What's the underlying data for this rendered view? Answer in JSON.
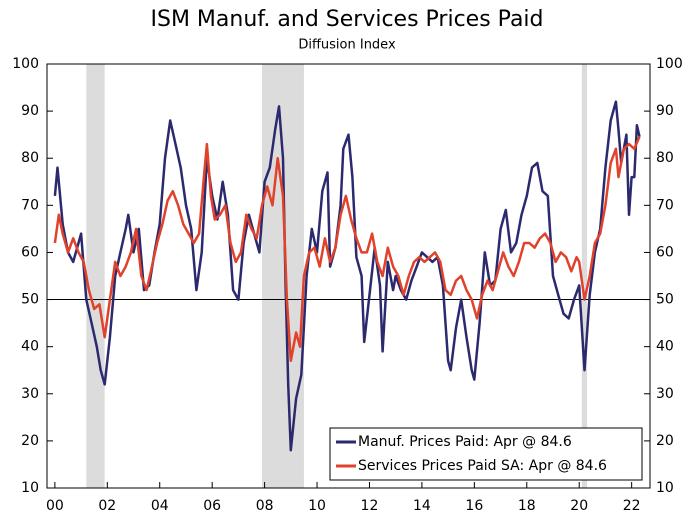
{
  "chart_data": {
    "type": "line",
    "title": "ISM Manuf. and Services Prices Paid",
    "subtitle": "Diffusion Index",
    "xlim": [
      1999.7,
      2022.7
    ],
    "xticks": [
      {
        "value": 2000,
        "label": "00"
      },
      {
        "value": 2002,
        "label": "02"
      },
      {
        "value": 2004,
        "label": "04"
      },
      {
        "value": 2006,
        "label": "06"
      },
      {
        "value": 2008,
        "label": "08"
      },
      {
        "value": 2010,
        "label": "10"
      },
      {
        "value": 2012,
        "label": "12"
      },
      {
        "value": 2014,
        "label": "14"
      },
      {
        "value": 2016,
        "label": "16"
      },
      {
        "value": 2018,
        "label": "18"
      },
      {
        "value": 2020,
        "label": "20"
      },
      {
        "value": 2022,
        "label": "22"
      }
    ],
    "ylim": [
      10,
      100
    ],
    "yticks": [
      10,
      20,
      30,
      40,
      50,
      60,
      70,
      80,
      90,
      100
    ],
    "y2lim": [
      10,
      100
    ],
    "y2ticks": [
      10,
      20,
      30,
      40,
      50,
      60,
      70,
      80,
      90,
      100
    ],
    "hline": 50,
    "shaded_regions": [
      [
        2001.2,
        2001.9
      ],
      [
        2007.9,
        2009.5
      ],
      [
        2020.1,
        2020.3
      ]
    ],
    "shade_color": "#dcdcdc",
    "legend": "lower right",
    "series": [
      {
        "name": "Manuf. Prices Paid: Apr @ 84.6",
        "color": "#2b2a6e",
        "x": [
          2000.0,
          2000.1,
          2000.3,
          2000.5,
          2000.7,
          2000.9,
          2001.0,
          2001.2,
          2001.4,
          2001.6,
          2001.75,
          2001.9,
          2002.1,
          2002.3,
          2002.5,
          2002.7,
          2002.8,
          2003.0,
          2003.2,
          2003.4,
          2003.6,
          2003.8,
          2004.0,
          2004.2,
          2004.4,
          2004.6,
          2004.8,
          2005.0,
          2005.2,
          2005.4,
          2005.6,
          2005.8,
          2006.0,
          2006.2,
          2006.4,
          2006.6,
          2006.8,
          2007.0,
          2007.2,
          2007.4,
          2007.6,
          2007.8,
          2008.0,
          2008.2,
          2008.4,
          2008.55,
          2008.7,
          2008.8,
          2008.9,
          2009.0,
          2009.2,
          2009.4,
          2009.6,
          2009.8,
          2010.0,
          2010.2,
          2010.4,
          2010.5,
          2010.7,
          2010.9,
          2011.0,
          2011.2,
          2011.35,
          2011.5,
          2011.7,
          2011.8,
          2012.0,
          2012.2,
          2012.4,
          2012.5,
          2012.7,
          2012.9,
          2013.0,
          2013.2,
          2013.4,
          2013.6,
          2013.8,
          2014.0,
          2014.2,
          2014.4,
          2014.6,
          2014.8,
          2015.0,
          2015.1,
          2015.3,
          2015.5,
          2015.7,
          2015.9,
          2016.0,
          2016.2,
          2016.4,
          2016.6,
          2016.8,
          2017.0,
          2017.2,
          2017.4,
          2017.6,
          2017.8,
          2018.0,
          2018.2,
          2018.4,
          2018.6,
          2018.8,
          2019.0,
          2019.2,
          2019.4,
          2019.6,
          2019.8,
          2020.0,
          2020.2,
          2020.4,
          2020.6,
          2020.8,
          2021.0,
          2021.2,
          2021.4,
          2021.5,
          2021.6,
          2021.8,
          2021.9,
          2022.0,
          2022.1,
          2022.2,
          2022.3
        ],
        "values": [
          72,
          78,
          66,
          60,
          58,
          62,
          64,
          50,
          45,
          40,
          35,
          32,
          42,
          55,
          60,
          65,
          68,
          60,
          65,
          52,
          53,
          60,
          66,
          80,
          88,
          83,
          78,
          70,
          65,
          52,
          60,
          80,
          72,
          67,
          75,
          68,
          52,
          50,
          62,
          68,
          64,
          60,
          75,
          78,
          86,
          91,
          80,
          53,
          32,
          18,
          29,
          34,
          55,
          65,
          60,
          73,
          77,
          57,
          61,
          70,
          82,
          85,
          76,
          59,
          55,
          41,
          51,
          61,
          53,
          39,
          58,
          52,
          55,
          52,
          50,
          54,
          57,
          60,
          59,
          58,
          59,
          53,
          37,
          35,
          44,
          50,
          42,
          35,
          33,
          45,
          60,
          53,
          54,
          65,
          69,
          60,
          62,
          68,
          72,
          78,
          79,
          73,
          72,
          55,
          51,
          47,
          46,
          50,
          53,
          35,
          51,
          60,
          65,
          78,
          88,
          92,
          86,
          79,
          85,
          68,
          76,
          76,
          87,
          84.6
        ]
      },
      {
        "name": "Services Prices Paid SA: Apr @ 84.6",
        "color": "#e0422b",
        "x": [
          2000.0,
          2000.15,
          2000.3,
          2000.5,
          2000.7,
          2000.9,
          2001.1,
          2001.3,
          2001.5,
          2001.7,
          2001.9,
          2002.1,
          2002.3,
          2002.5,
          2002.7,
          2002.9,
          2003.1,
          2003.3,
          2003.5,
          2003.7,
          2003.9,
          2004.1,
          2004.3,
          2004.5,
          2004.7,
          2004.9,
          2005.1,
          2005.3,
          2005.5,
          2005.7,
          2005.8,
          2005.95,
          2006.1,
          2006.3,
          2006.5,
          2006.7,
          2006.9,
          2007.1,
          2007.3,
          2007.5,
          2007.7,
          2007.9,
          2008.1,
          2008.3,
          2008.5,
          2008.7,
          2008.85,
          2009.0,
          2009.2,
          2009.35,
          2009.5,
          2009.7,
          2009.9,
          2010.1,
          2010.3,
          2010.5,
          2010.7,
          2010.9,
          2011.1,
          2011.3,
          2011.5,
          2011.7,
          2011.9,
          2012.1,
          2012.3,
          2012.5,
          2012.7,
          2012.9,
          2013.1,
          2013.3,
          2013.5,
          2013.7,
          2013.9,
          2014.1,
          2014.3,
          2014.5,
          2014.7,
          2014.9,
          2015.1,
          2015.3,
          2015.5,
          2015.7,
          2015.9,
          2016.1,
          2016.3,
          2016.5,
          2016.7,
          2016.9,
          2017.1,
          2017.3,
          2017.5,
          2017.7,
          2017.9,
          2018.1,
          2018.3,
          2018.5,
          2018.7,
          2018.9,
          2019.1,
          2019.3,
          2019.5,
          2019.7,
          2019.9,
          2020.0,
          2020.2,
          2020.4,
          2020.6,
          2020.8,
          2021.0,
          2021.2,
          2021.4,
          2021.5,
          2021.7,
          2021.9,
          2022.1,
          2022.3
        ],
        "values": [
          62,
          68,
          64,
          60,
          63,
          60,
          58,
          52,
          48,
          49,
          42,
          50,
          58,
          55,
          57,
          60,
          65,
          55,
          52,
          57,
          62,
          66,
          71,
          73,
          70,
          66,
          64,
          62,
          64,
          77,
          83,
          72,
          67,
          68,
          70,
          62,
          58,
          60,
          68,
          65,
          63,
          70,
          74,
          70,
          80,
          72,
          50,
          37,
          43,
          40,
          55,
          60,
          61,
          57,
          63,
          58,
          61,
          68,
          72,
          67,
          63,
          60,
          60,
          64,
          58,
          55,
          61,
          57,
          55,
          51,
          55,
          58,
          59,
          58,
          59,
          60,
          58,
          52,
          51,
          54,
          55,
          52,
          50,
          46,
          51,
          54,
          52,
          56,
          60,
          57,
          55,
          58,
          62,
          62,
          61,
          63,
          64,
          62,
          58,
          60,
          59,
          56,
          59,
          58,
          50,
          55,
          62,
          64,
          70,
          79,
          82,
          76,
          82,
          83,
          82,
          84.6
        ]
      }
    ]
  }
}
